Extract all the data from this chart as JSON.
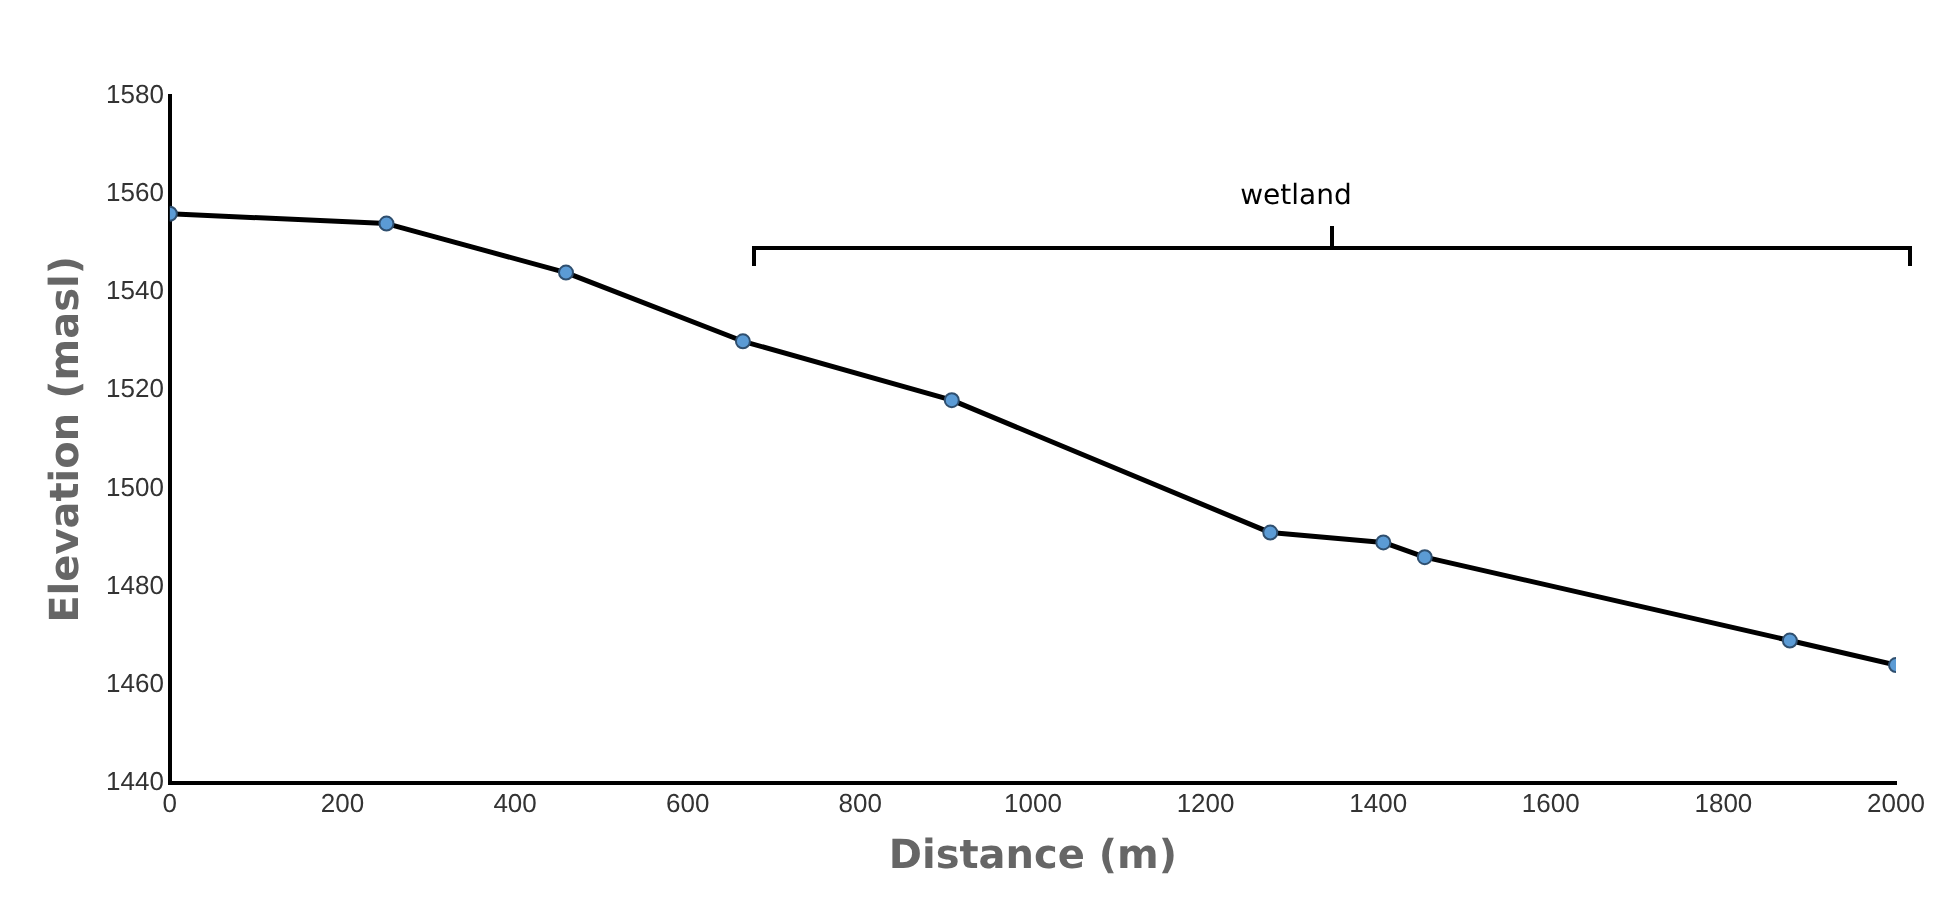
{
  "chart_data": {
    "type": "line",
    "xlabel": "Distance (m)",
    "ylabel": "Elevation (masl)",
    "x": [
      0,
      251,
      459,
      664,
      906,
      1275,
      1406,
      1454,
      1877,
      2000
    ],
    "series": [
      {
        "color": "#000000",
        "values": [
          1556,
          1554,
          1544,
          1530,
          1518,
          1491,
          1489,
          1486,
          1469,
          1464
        ]
      }
    ],
    "xlim": [
      0,
      2000
    ],
    "xticks": [
      0,
      200,
      400,
      600,
      800,
      1000,
      1200,
      1400,
      1600,
      1800,
      2000
    ],
    "ylim": [
      1440,
      1580
    ],
    "yticks": [
      1440,
      1460,
      1480,
      1500,
      1520,
      1540,
      1560,
      1580
    ],
    "grid": false,
    "legend": false,
    "marker": "circle",
    "line_style": "solid",
    "annotations": [
      "wetland"
    ]
  }
}
